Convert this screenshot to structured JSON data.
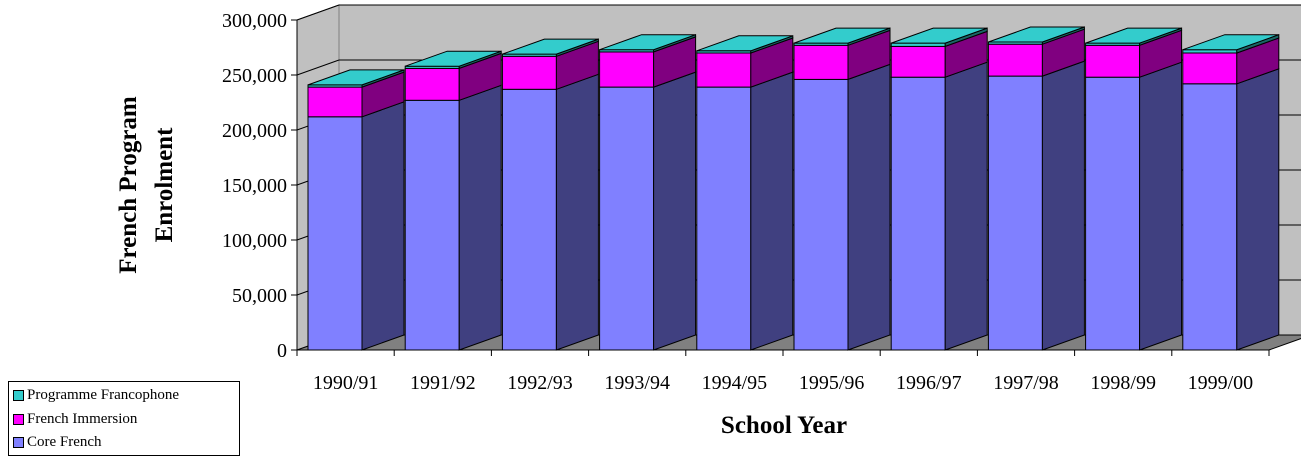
{
  "chart_data": {
    "type": "bar",
    "stacked": true,
    "three_d": true,
    "xlabel": "School Year",
    "ylabel": "French Program Enrolment",
    "ylim": [
      0,
      300000
    ],
    "ytick_labels": [
      "0",
      "50,000",
      "100,000",
      "150,000",
      "200,000",
      "250,000",
      "300,000"
    ],
    "categories": [
      "1990/91",
      "1991/92",
      "1992/93",
      "1993/94",
      "1994/95",
      "1995/96",
      "1996/97",
      "1997/98",
      "1998/99",
      "1999/00"
    ],
    "series": [
      {
        "name": "Core French",
        "color": "#8080ff",
        "values": [
          212000,
          227000,
          237000,
          239000,
          239000,
          246000,
          248000,
          249000,
          248000,
          242000
        ]
      },
      {
        "name": "French Immersion",
        "color": "#ff00ff",
        "values": [
          27000,
          29000,
          30000,
          32000,
          31000,
          31000,
          28000,
          29000,
          29000,
          28000
        ]
      },
      {
        "name": "Programme Francophone",
        "color": "#33cccc",
        "values": [
          2000,
          2000,
          2000,
          2000,
          2000,
          2000,
          3000,
          2000,
          2000,
          3000
        ]
      }
    ],
    "grid": true,
    "legend_position": "bottom-left"
  },
  "legend": {
    "items": [
      {
        "label": "Programme Francophone",
        "color": "#33cccc"
      },
      {
        "label": "French Immersion",
        "color": "#ff00ff"
      },
      {
        "label": "Core French",
        "color": "#8080ff"
      }
    ]
  }
}
